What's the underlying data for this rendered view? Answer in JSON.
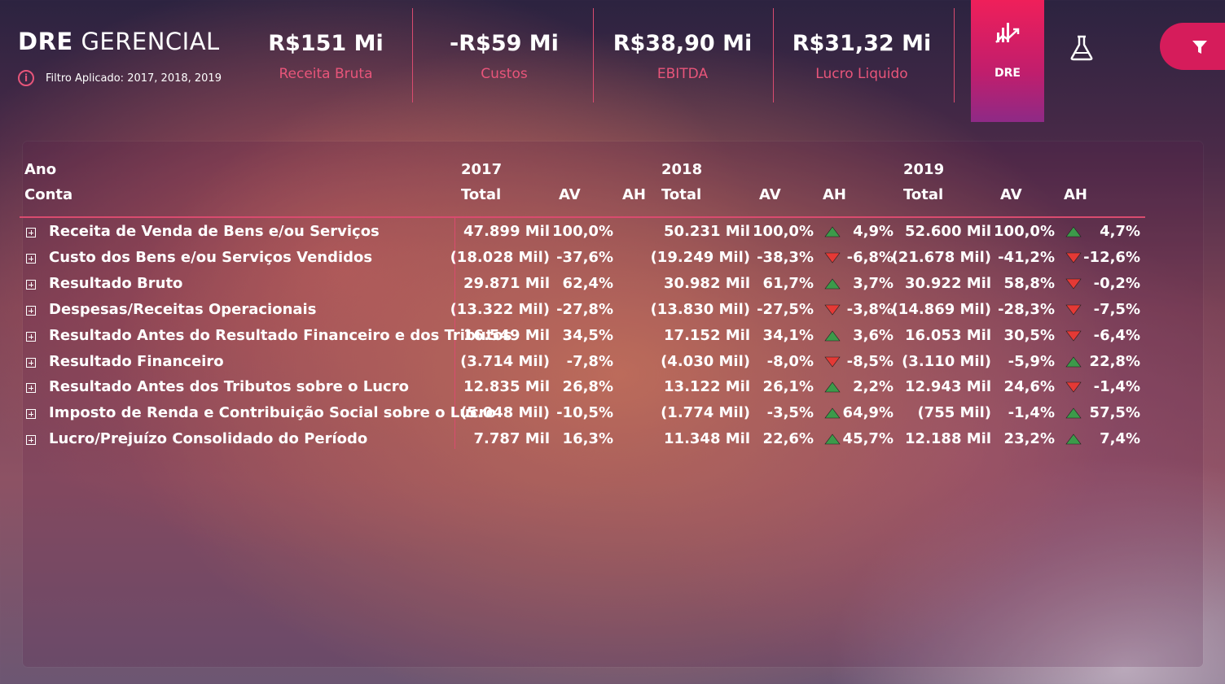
{
  "header": {
    "title_bold": "DRE",
    "title_light": "GERENCIAL",
    "filter_text": "Filtro Aplicado: 2017, 2018, 2019",
    "kpis": [
      {
        "value": "R$151 Mi",
        "label": "Receita Bruta"
      },
      {
        "value": "-R$59 Mi",
        "label": "Custos"
      },
      {
        "value": "R$38,90 Mi",
        "label": "EBITDA"
      },
      {
        "value": "R$31,32 Mi",
        "label": "Lucro Liquido"
      }
    ],
    "dre_button": "DRE"
  },
  "colors": {
    "accent": "#e8557a",
    "up": "#4caf50",
    "down": "#e53935",
    "button": "#d61c5b"
  },
  "table": {
    "row_header_1": "Ano",
    "row_header_2": "Conta",
    "years": [
      "2017",
      "2018",
      "2019"
    ],
    "col_total": "Total",
    "col_av": "AV",
    "col_ah": "AH",
    "rows": [
      {
        "label": "Receita de Venda de Bens e/ou Serviços",
        "y2017": {
          "total": "47.899 Mil",
          "av": "100,0%"
        },
        "y2018": {
          "total": "50.231 Mil",
          "av": "100,0%",
          "ah": "4,9%",
          "dir": "up"
        },
        "y2019": {
          "total": "52.600 Mil",
          "av": "100,0%",
          "ah": "4,7%",
          "dir": "up"
        }
      },
      {
        "label": "Custo dos Bens e/ou Serviços Vendidos",
        "y2017": {
          "total": "(18.028 Mil)",
          "av": "-37,6%"
        },
        "y2018": {
          "total": "(19.249 Mil)",
          "av": "-38,3%",
          "ah": "-6,8%",
          "dir": "down"
        },
        "y2019": {
          "total": "(21.678 Mil)",
          "av": "-41,2%",
          "ah": "-12,6%",
          "dir": "down"
        }
      },
      {
        "label": "Resultado Bruto",
        "y2017": {
          "total": "29.871 Mil",
          "av": "62,4%"
        },
        "y2018": {
          "total": "30.982 Mil",
          "av": "61,7%",
          "ah": "3,7%",
          "dir": "up"
        },
        "y2019": {
          "total": "30.922 Mil",
          "av": "58,8%",
          "ah": "-0,2%",
          "dir": "down"
        }
      },
      {
        "label": "Despesas/Receitas Operacionais",
        "y2017": {
          "total": "(13.322 Mil)",
          "av": "-27,8%"
        },
        "y2018": {
          "total": "(13.830 Mil)",
          "av": "-27,5%",
          "ah": "-3,8%",
          "dir": "down"
        },
        "y2019": {
          "total": "(14.869 Mil)",
          "av": "-28,3%",
          "ah": "-7,5%",
          "dir": "down"
        }
      },
      {
        "label": "Resultado Antes do Resultado Financeiro e dos Tributos",
        "y2017": {
          "total": "16.549 Mil",
          "av": "34,5%"
        },
        "y2018": {
          "total": "17.152 Mil",
          "av": "34,1%",
          "ah": "3,6%",
          "dir": "up"
        },
        "y2019": {
          "total": "16.053 Mil",
          "av": "30,5%",
          "ah": "-6,4%",
          "dir": "down"
        }
      },
      {
        "label": "Resultado Financeiro",
        "y2017": {
          "total": "(3.714 Mil)",
          "av": "-7,8%"
        },
        "y2018": {
          "total": "(4.030 Mil)",
          "av": "-8,0%",
          "ah": "-8,5%",
          "dir": "down"
        },
        "y2019": {
          "total": "(3.110 Mil)",
          "av": "-5,9%",
          "ah": "22,8%",
          "dir": "up"
        }
      },
      {
        "label": "Resultado Antes dos Tributos sobre o Lucro",
        "y2017": {
          "total": "12.835 Mil",
          "av": "26,8%"
        },
        "y2018": {
          "total": "13.122 Mil",
          "av": "26,1%",
          "ah": "2,2%",
          "dir": "up"
        },
        "y2019": {
          "total": "12.943 Mil",
          "av": "24,6%",
          "ah": "-1,4%",
          "dir": "down"
        }
      },
      {
        "label": "Imposto de Renda e Contribuição Social sobre o Lucro",
        "y2017": {
          "total": "(5.048 Mil)",
          "av": "-10,5%"
        },
        "y2018": {
          "total": "(1.774 Mil)",
          "av": "-3,5%",
          "ah": "64,9%",
          "dir": "up"
        },
        "y2019": {
          "total": "(755 Mil)",
          "av": "-1,4%",
          "ah": "57,5%",
          "dir": "up"
        }
      },
      {
        "label": "Lucro/Prejuízo Consolidado do Período",
        "y2017": {
          "total": "7.787 Mil",
          "av": "16,3%"
        },
        "y2018": {
          "total": "11.348 Mil",
          "av": "22,6%",
          "ah": "45,7%",
          "dir": "up"
        },
        "y2019": {
          "total": "12.188 Mil",
          "av": "23,2%",
          "ah": "7,4%",
          "dir": "up"
        }
      }
    ]
  }
}
